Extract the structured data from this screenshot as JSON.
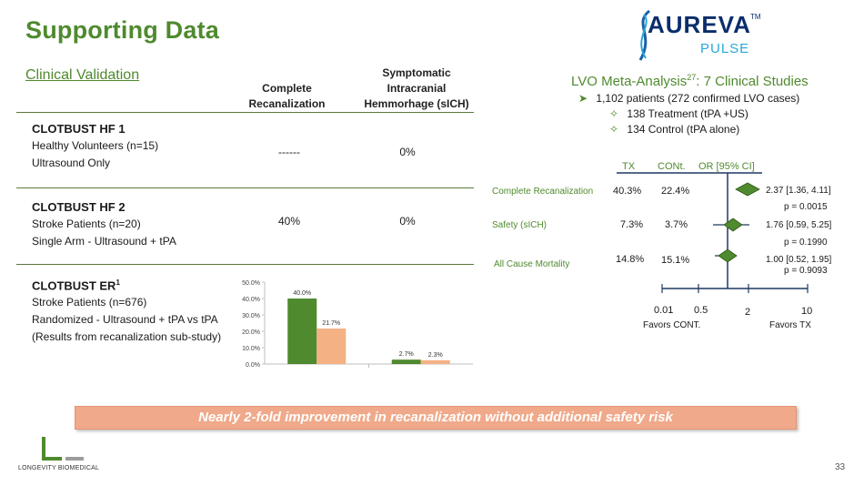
{
  "slide": {
    "title": "Supporting Data",
    "page_number": "33",
    "banner": "Nearly 2-fold improvement in recanalization without additional safety risk"
  },
  "logo": {
    "word": "AUREVA",
    "tm": "TM",
    "sub": "PULSE"
  },
  "footer_logo": {
    "name": "LONGEVITY BIOMEDICAL"
  },
  "clinical": {
    "title": "Clinical Validation",
    "col1": [
      "Complete",
      "Recanalization"
    ],
    "col2": [
      "Symptomatic",
      "Intracranial",
      "Hemmorhage (sICH)"
    ],
    "studies": [
      {
        "name": "CLOTBUST HF 1",
        "sup": "",
        "lines": [
          "Healthy Volunteers (n=15)",
          "Ultrasound Only"
        ],
        "recan": "------",
        "sich": "0%"
      },
      {
        "name": "CLOTBUST HF 2",
        "sup": "",
        "lines": [
          "Stroke Patients (n=20)",
          "Single Arm - Ultrasound + tPA"
        ],
        "recan": "40%",
        "sich": "0%"
      },
      {
        "name": "CLOTBUST ER",
        "sup": "1",
        "lines": [
          "Stroke Patients (n=676)",
          "Randomized - Ultrasound + tPA vs tPA",
          "(Results from recanalization sub-study)"
        ],
        "recan": "",
        "sich": ""
      }
    ]
  },
  "chart_data": {
    "type": "bar",
    "categories": [
      "",
      ""
    ],
    "series": [
      {
        "values": [
          40.0,
          2.7
        ],
        "color": "#4f8a2e"
      },
      {
        "values": [
          21.7,
          2.3
        ],
        "color": "#f4b183"
      }
    ],
    "value_labels": [
      [
        "40.0%",
        "2.7%"
      ],
      [
        "21.7%",
        "2.3%"
      ]
    ],
    "ylim": [
      0,
      50
    ],
    "yticks": [
      "0.0%",
      "10.0%",
      "20.0%",
      "30.0%",
      "40.0%",
      "50.0%"
    ],
    "grid": false
  },
  "meta": {
    "title": "LVO Meta-Analysis",
    "title_sup": "27",
    "title_rest": ": 7 Clinical Studies",
    "bullet1": "1,102 patients (272 confirmed LVO cases)",
    "sub1": "138 Treatment (tPA +US)",
    "sub2": "134 Control (tPA alone)",
    "head_tx": "TX",
    "head_cont": "CONt.",
    "head_or": "OR [95% CI]",
    "rows": [
      {
        "label": "Complete Recanalization",
        "tx": "40.3%",
        "cont": "22.4%",
        "or": "2.37 [1.36, 4.11]",
        "p": "p = 0.0015"
      },
      {
        "label": "Safety (sICH)",
        "tx": "7.3%",
        "cont": "3.7%",
        "or": "1.76 [0.59, 5.25]",
        "p": "p = 0.1990"
      },
      {
        "label": "All Cause Mortality",
        "tx": "14.8%",
        "cont": "15.1%",
        "or": "1.00 [0.52, 1.95]",
        "p": "p = 0.9093"
      }
    ],
    "axis_ticks": [
      "0.01",
      "0.5",
      "2",
      "10"
    ],
    "favors_cont": "Favors CONT.",
    "favors_tx": "Favors TX",
    "colors": {
      "accent": "#4f8a2e",
      "axis": "#1f3864",
      "diamond": "#4f8a2e"
    }
  }
}
